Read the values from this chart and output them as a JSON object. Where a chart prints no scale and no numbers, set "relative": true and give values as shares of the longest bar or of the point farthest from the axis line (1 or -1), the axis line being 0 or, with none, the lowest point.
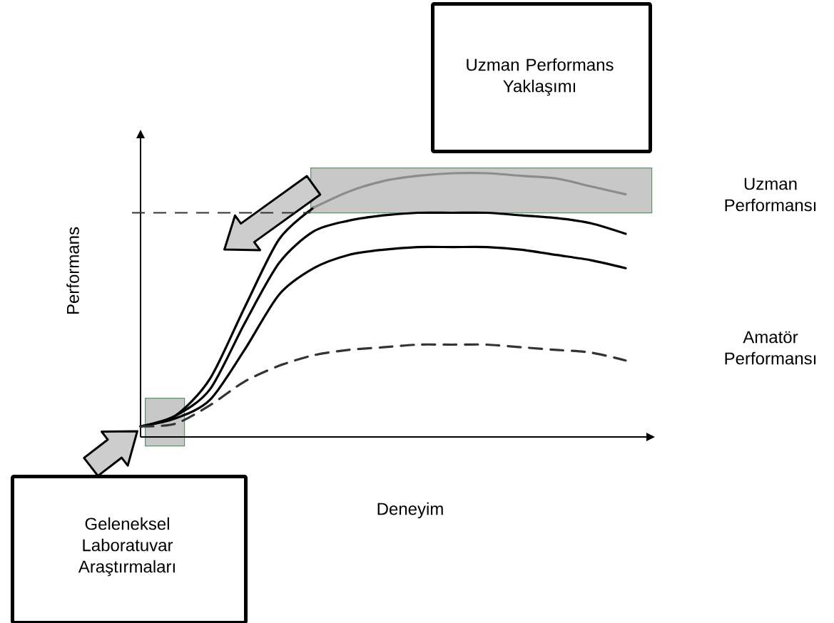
{
  "chart_data": {
    "type": "line",
    "relative": true,
    "xlabel": "Deneyim",
    "ylabel": "Performans",
    "line_style": "solid",
    "categories": [
      null,
      null,
      null,
      null,
      null,
      null,
      null,
      null,
      null,
      null,
      null,
      null,
      null,
      null,
      null
    ],
    "series": [
      {
        "color": "#000000",
        "values": [
          0.04,
          0.08,
          0.22,
          0.49,
          0.75,
          0.87,
          null,
          null,
          null,
          null,
          null,
          null,
          null,
          null,
          null
        ]
      },
      {
        "color": "#8c8c8c",
        "values": [
          null,
          null,
          null,
          null,
          null,
          0.87,
          0.93,
          0.97,
          0.99,
          1.0,
          1.0,
          0.99,
          0.98,
          0.95,
          0.92
        ]
      },
      {
        "color": "#000000",
        "values": [
          0.04,
          0.08,
          0.18,
          0.43,
          0.66,
          0.78,
          0.82,
          0.84,
          0.85,
          0.85,
          0.85,
          0.84,
          0.83,
          0.81,
          0.77
        ]
      },
      {
        "color": "#000000",
        "values": [
          0.04,
          0.07,
          0.14,
          0.33,
          0.54,
          0.64,
          0.69,
          0.71,
          0.72,
          0.72,
          0.72,
          0.71,
          0.69,
          0.67,
          0.64
        ]
      },
      {
        "color": "#333333",
        "line_style": "dashed",
        "values": [
          0.04,
          0.05,
          0.12,
          0.21,
          0.27,
          0.31,
          0.33,
          0.34,
          0.35,
          0.35,
          0.35,
          0.34,
          0.33,
          0.32,
          0.29
        ]
      }
    ],
    "ref_lines": [
      {
        "axis": "y",
        "value": 0.85,
        "color": "#333333",
        "line_style": "dashed"
      }
    ],
    "annotations": [
      "Uzman Performans Yaklaşımı",
      "Uzman Performansı",
      "Amatör Performansı",
      "Geleneksel Laboratuvar Araştırmaları"
    ]
  }
}
